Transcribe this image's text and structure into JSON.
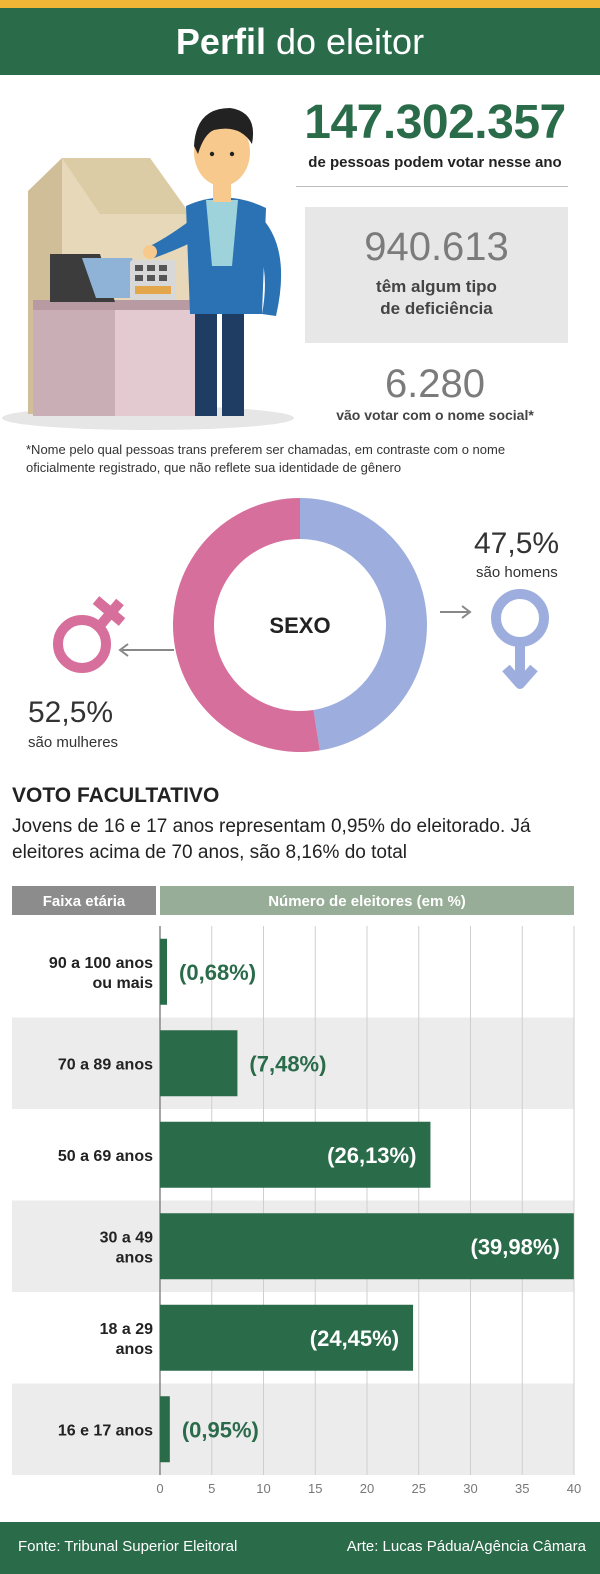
{
  "header": {
    "title_bold": "Perfil",
    "title_rest": " do eleitor"
  },
  "stats": {
    "total_value": "147.302.357",
    "total_caption": "de pessoas podem votar nesse ano",
    "deficiency_value": "940.613",
    "deficiency_caption_line1": "têm algum tipo",
    "deficiency_caption_line2": "de deficiência",
    "social_name_value": "6.280",
    "social_name_caption": "vão votar com o nome social*"
  },
  "footnote_line1": "*Nome pelo qual pessoas trans preferem ser chamadas, em contraste com o nome",
  "footnote_line2": "oficialmente registrado, que não reflete sua identidade de gênero",
  "sex": {
    "center_label": "SEXO",
    "men_pct": "47,5%",
    "men_caption": "são homens",
    "women_pct": "52,5%",
    "women_caption": "são mulheres",
    "men_value": 47.5,
    "women_value": 52.5,
    "men_color": "#9daede",
    "women_color": "#d66f9b"
  },
  "voto": {
    "title": "VOTO FACULTATIVO",
    "text_line1": "Jovens de 16 e 17 anos representam 0,95% do eleitorado. Já",
    "text_line2": "eleitores acima de 70 anos, são 8,16% do total"
  },
  "chart_data": {
    "type": "bar",
    "orientation": "horizontal",
    "header_left": "Faixa etária",
    "header_right": "Número de eleitores (em %)",
    "categories": [
      [
        "90 a 100 anos",
        "ou mais"
      ],
      [
        "70 a 89 anos"
      ],
      [
        "50 a 69 anos"
      ],
      [
        "30 a 49",
        "anos"
      ],
      [
        "18 a 29",
        "anos"
      ],
      [
        "16 e 17 anos"
      ]
    ],
    "values": [
      0.68,
      7.48,
      26.13,
      39.98,
      24.45,
      0.95
    ],
    "value_labels": [
      "(0,68%)",
      "(7,48%)",
      "(26,13%)",
      "(39,98%)",
      "(24,45%)",
      "(0,95%)"
    ],
    "xlim": [
      0,
      40
    ],
    "xticks": [
      "0",
      "5",
      "10",
      "15",
      "20",
      "25",
      "30",
      "35",
      "40"
    ],
    "grid": true,
    "bar_color": "#2a6b4a"
  },
  "footer": {
    "source": "Fonte: Tribunal Superior Eleitoral",
    "credit": "Arte: Lucas Pádua/Agência Câmara"
  }
}
